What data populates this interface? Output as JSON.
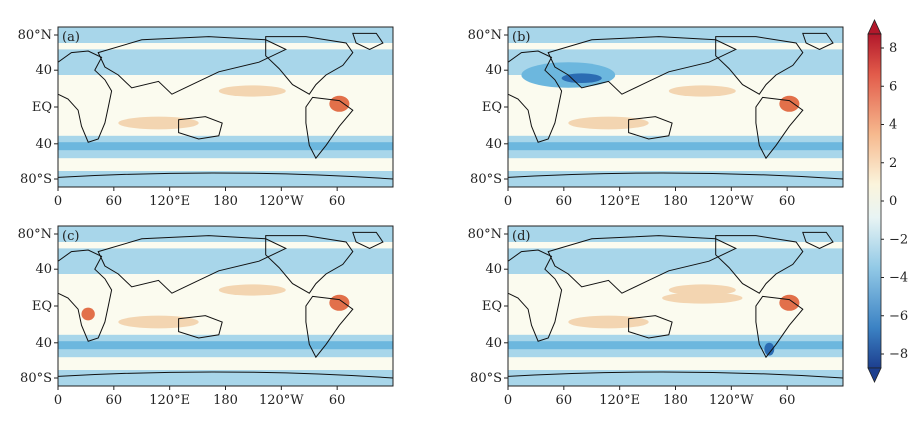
{
  "chart_data": {
    "type": "heatmap",
    "panels": [
      {
        "label": "(a)"
      },
      {
        "label": "(b)"
      },
      {
        "label": "(c)"
      },
      {
        "label": "(d)"
      }
    ],
    "x_ticks": [
      "0",
      "60",
      "120°E",
      "180",
      "120°W",
      "60"
    ],
    "y_ticks": [
      "80°N",
      "40",
      "EQ",
      "40",
      "80°S"
    ],
    "colorbar": {
      "ticks": [
        "8",
        "6",
        "4",
        "2",
        "0",
        "−2",
        "−4",
        "−6",
        "−8"
      ],
      "range": [
        -8,
        8
      ]
    },
    "colors": {
      "land_neutral": "#fbfbef",
      "ocean_band": "#a8d6ea",
      "ocean_deep": "#6cb7de",
      "strong_neg": "#2b6cb3",
      "pos_weak": "#f3d5b1",
      "pos_strong": "#e2704a"
    }
  }
}
